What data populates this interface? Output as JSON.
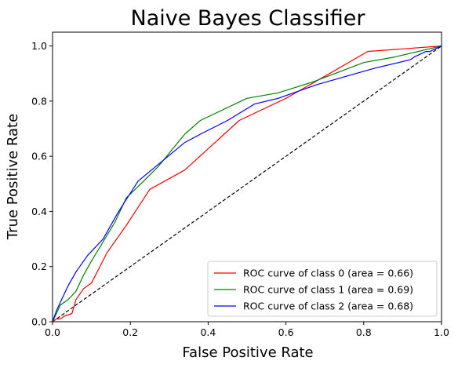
{
  "chart_data": {
    "type": "line",
    "title": "Naive Bayes Classifier",
    "xlabel": "False Positive Rate",
    "ylabel": "True Positive Rate",
    "xlim": [
      0.0,
      1.0
    ],
    "ylim": [
      0.0,
      1.05
    ],
    "xticks": [
      "0.0",
      "0.2",
      "0.4",
      "0.6",
      "0.8",
      "1.0"
    ],
    "yticks": [
      "0.0",
      "0.2",
      "0.4",
      "0.6",
      "0.8",
      "1.0"
    ],
    "grid": false,
    "legend_position": "lower-right",
    "series": [
      {
        "name": "ROC curve of class 0 (area = 0.66)",
        "color": "#ff0000",
        "x": [
          0.0,
          0.01,
          0.02,
          0.03,
          0.05,
          0.06,
          0.08,
          0.1,
          0.14,
          0.19,
          0.25,
          0.34,
          0.48,
          0.6,
          0.7,
          0.81,
          1.0
        ],
        "y": [
          0.0,
          0.01,
          0.01,
          0.02,
          0.03,
          0.08,
          0.12,
          0.14,
          0.25,
          0.35,
          0.48,
          0.55,
          0.73,
          0.81,
          0.89,
          0.98,
          1.0
        ]
      },
      {
        "name": "ROC curve of class 1 (area = 0.69)",
        "color": "#008000",
        "x": [
          0.0,
          0.01,
          0.02,
          0.04,
          0.06,
          0.08,
          0.1,
          0.13,
          0.16,
          0.19,
          0.22,
          0.27,
          0.34,
          0.38,
          0.5,
          0.58,
          0.67,
          0.8,
          0.88,
          1.0
        ],
        "y": [
          0.0,
          0.03,
          0.06,
          0.08,
          0.11,
          0.17,
          0.22,
          0.29,
          0.36,
          0.45,
          0.49,
          0.56,
          0.68,
          0.73,
          0.81,
          0.83,
          0.87,
          0.94,
          0.96,
          1.0
        ]
      },
      {
        "name": "ROC curve of class 2 (area = 0.68)",
        "color": "#0000ff",
        "x": [
          0.0,
          0.01,
          0.02,
          0.04,
          0.06,
          0.09,
          0.13,
          0.17,
          0.22,
          0.28,
          0.34,
          0.38,
          0.45,
          0.52,
          0.58,
          0.68,
          0.78,
          0.83,
          0.92,
          0.93,
          0.96,
          0.97,
          1.0
        ],
        "y": [
          0.0,
          0.04,
          0.07,
          0.13,
          0.18,
          0.24,
          0.3,
          0.4,
          0.51,
          0.58,
          0.65,
          0.68,
          0.73,
          0.79,
          0.81,
          0.86,
          0.9,
          0.92,
          0.95,
          0.96,
          0.98,
          0.98,
          1.0
        ]
      }
    ],
    "reference_line": {
      "style": "dashed",
      "color": "#000000",
      "x": [
        0.0,
        1.0
      ],
      "y": [
        0.0,
        1.0
      ]
    }
  }
}
